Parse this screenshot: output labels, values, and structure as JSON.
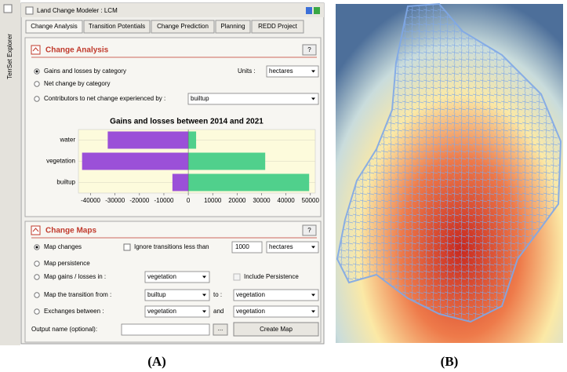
{
  "sidebar": "TerrSet Explorer",
  "window": {
    "title": "Land Change Modeler : LCM"
  },
  "tabs": [
    "Change Analysis",
    "Transition Potentials",
    "Change Prediction",
    "Planning",
    "REDD Project"
  ],
  "change_analysis": {
    "title": "Change Analysis",
    "help": "?",
    "options": [
      "Gains and losses by category",
      "Net change by category",
      "Contributors to net change experienced by :"
    ],
    "units_label": "Units :",
    "units": "hectares",
    "contributor": "builtup"
  },
  "chart_data": {
    "type": "hbar",
    "title": "Gains and losses between 2014 and 2021",
    "categories": [
      "water",
      "vegetation",
      "builtup"
    ],
    "series": [
      {
        "color": "#9b50d8",
        "values": [
          -33000,
          -43500,
          -6500
        ]
      },
      {
        "color": "#50d08c",
        "values": [
          3200,
          31500,
          49500
        ]
      }
    ],
    "xlim": [
      -45000,
      52000
    ],
    "xticks": [
      -40000,
      -30000,
      -20000,
      -10000,
      0,
      10000,
      20000,
      30000,
      40000,
      50000
    ]
  },
  "change_maps": {
    "title": "Change Maps",
    "help": "?",
    "map_changes": "Map changes",
    "ignore": "Ignore transitions less than",
    "ignore_value": "1000",
    "ignore_units": "hectares",
    "map_persistence": "Map persistence",
    "gains_losses": "Map gains / losses in :",
    "gains_losses_value": "vegetation",
    "include_persistence": "Include Persistence",
    "transition_from": "Map the transition from :",
    "transition_from_value": "builtup",
    "to": "to :",
    "transition_to_value": "vegetation",
    "exchanges": "Exchanges between :",
    "exchanges_a": "vegetation",
    "and": "and",
    "exchanges_b": "vegetation",
    "output": "Output name (optional):",
    "browse": "...",
    "create": "Create Map"
  },
  "labels": [
    "(A)",
    "(B)"
  ]
}
